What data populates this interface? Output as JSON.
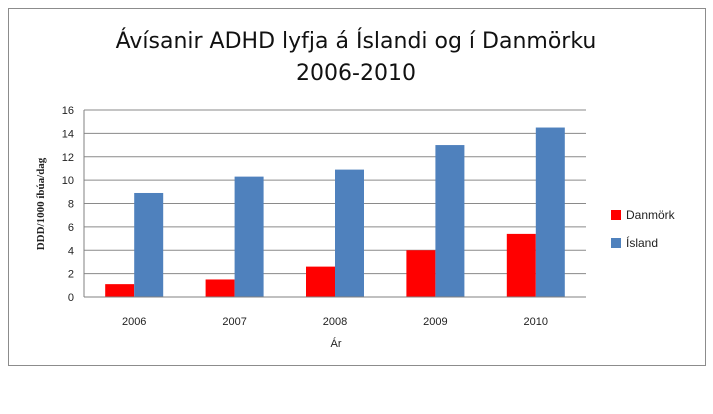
{
  "chart_data": {
    "type": "bar",
    "title_line1": "Ávísanir ADHD lyfja á Íslandi og í Danmörku",
    "title_line2": "2006-2010",
    "xlabel": "Ár",
    "ylabel": "DDD/1000 íbúa/dag",
    "categories": [
      "2006",
      "2007",
      "2008",
      "2009",
      "2010"
    ],
    "ylim": [
      0,
      16
    ],
    "yticks": [
      0,
      2,
      4,
      6,
      8,
      10,
      12,
      14,
      16
    ],
    "grid": true,
    "legend_position": "right",
    "series": [
      {
        "name": "Danmörk",
        "color": "#ff0000",
        "values": [
          1.1,
          1.5,
          2.6,
          4.0,
          5.4
        ]
      },
      {
        "name": "Ísland",
        "color": "#4f81bd",
        "values": [
          8.9,
          10.3,
          10.9,
          13.0,
          14.5
        ]
      }
    ]
  }
}
